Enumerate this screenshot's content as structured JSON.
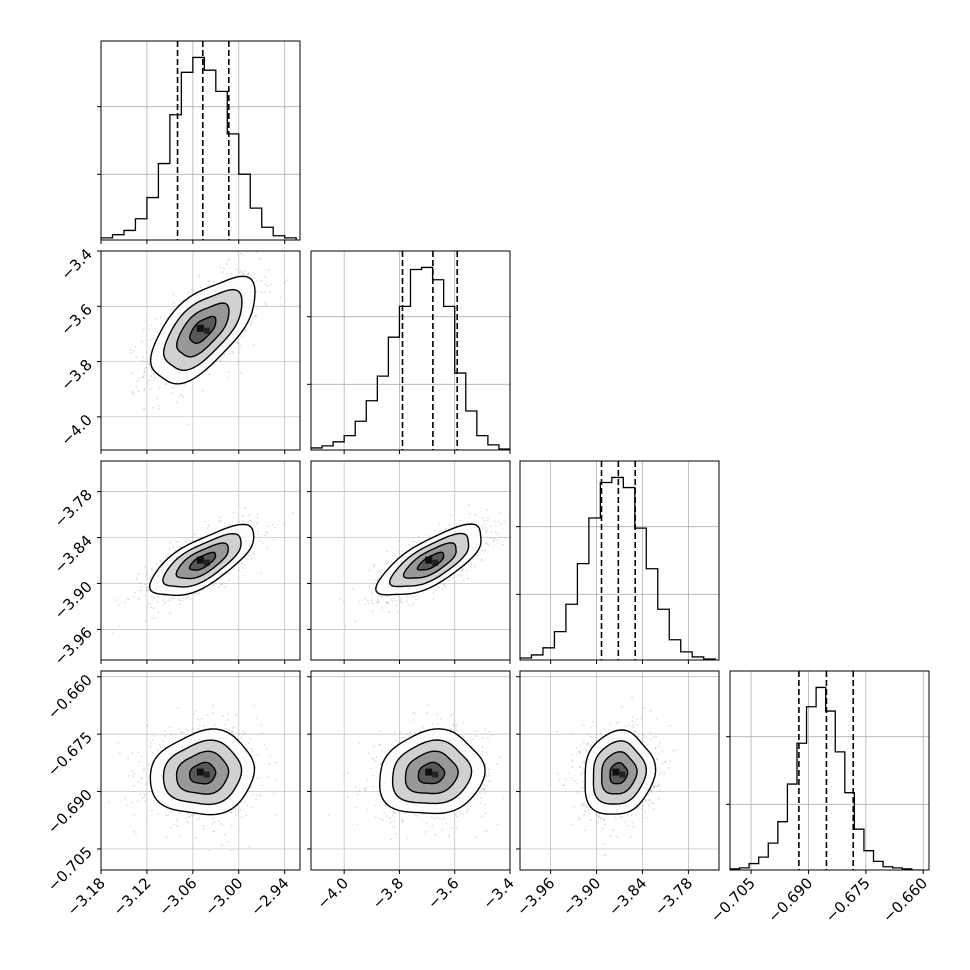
{
  "chart_data": {
    "type": "corner",
    "parameters": [
      {
        "range": [
          -3.18,
          -2.92
        ],
        "ticks": [
          "−3.18",
          "−3.12",
          "−3.06",
          "−3.00",
          "−2.94"
        ],
        "tick_values": [
          -3.18,
          -3.12,
          -3.06,
          -3.0,
          -2.94
        ]
      },
      {
        "range": [
          -4.12,
          -3.4
        ],
        "ticks": [
          "−4.0",
          "−3.8",
          "−3.6",
          "−3.4"
        ],
        "tick_values": [
          -4.0,
          -3.8,
          -3.6,
          -3.4
        ]
      },
      {
        "range": [
          -4.0,
          -3.74
        ],
        "ticks": [
          "−3.96",
          "−3.90",
          "−3.84",
          "−3.78"
        ],
        "tick_values": [
          -3.96,
          -3.9,
          -3.84,
          -3.78
        ]
      },
      {
        "range": [
          -0.7105,
          -0.6585
        ],
        "ticks": [
          "−0.705",
          "−0.690",
          "−0.675",
          "−0.660"
        ],
        "tick_values": [
          -0.705,
          -0.69,
          -0.675,
          -0.66
        ]
      }
    ],
    "y_tick_labels": {
      "row1": [
        "−3.4",
        "−3.6",
        "−3.8",
        "−4.0"
      ],
      "row2": [
        "−3.78",
        "−3.84",
        "−3.90",
        "−3.96"
      ],
      "row3": [
        "−0.660",
        "−0.675",
        "−0.690",
        "−0.705"
      ]
    },
    "histograms": [
      {
        "bins": [
          -3.18,
          -3.165,
          -3.15,
          -3.135,
          -3.12,
          -3.105,
          -3.09,
          -3.075,
          -3.06,
          -3.045,
          -3.03,
          -3.015,
          -3.0,
          -2.985,
          -2.97,
          -2.955,
          -2.94,
          -2.925
        ],
        "counts": [
          2,
          5,
          9,
          20,
          40,
          72,
          118,
          158,
          172,
          160,
          140,
          100,
          62,
          30,
          12,
          4,
          2
        ],
        "quantiles": [
          -3.08,
          -3.047,
          -3.013
        ]
      },
      {
        "bins": [
          -4.12,
          -4.08,
          -4.04,
          -4.0,
          -3.96,
          -3.92,
          -3.88,
          -3.84,
          -3.8,
          -3.76,
          -3.72,
          -3.68,
          -3.64,
          -3.6,
          -3.56,
          -3.52,
          -3.48,
          -3.44,
          -3.4
        ],
        "counts": [
          2,
          4,
          8,
          14,
          28,
          48,
          72,
          110,
          140,
          176,
          178,
          166,
          140,
          75,
          38,
          14,
          5,
          1
        ],
        "quantiles": [
          -3.789,
          -3.679,
          -3.591
        ]
      },
      {
        "bins": [
          -4.0,
          -3.985,
          -3.97,
          -3.955,
          -3.94,
          -3.925,
          -3.91,
          -3.895,
          -3.88,
          -3.865,
          -3.85,
          -3.835,
          -3.82,
          -3.805,
          -3.79,
          -3.775,
          -3.76,
          -3.745
        ],
        "counts": [
          2,
          5,
          12,
          28,
          55,
          95,
          140,
          175,
          180,
          170,
          130,
          90,
          50,
          20,
          8,
          3,
          1
        ],
        "quantiles": [
          -3.8935,
          -3.8715,
          -3.8495
        ]
      },
      {
        "bins": [
          -0.7105,
          -0.708,
          -0.7055,
          -0.703,
          -0.7005,
          -0.698,
          -0.6955,
          -0.693,
          -0.6905,
          -0.688,
          -0.6855,
          -0.683,
          -0.6805,
          -0.678,
          -0.6755,
          -0.673,
          -0.6705,
          -0.668,
          -0.6655,
          -0.663,
          -0.6605
        ],
        "counts": [
          1,
          2,
          6,
          12,
          25,
          45,
          80,
          118,
          152,
          170,
          148,
          110,
          72,
          38,
          18,
          8,
          3,
          2,
          1,
          0
        ],
        "quantiles": [
          -0.6925,
          -0.6853,
          -0.6783
        ]
      }
    ],
    "pairs": [
      {
        "row": 1,
        "col": 0,
        "mean": [
          -3.047,
          -3.685
        ],
        "sd": [
          0.034,
          0.095
        ],
        "rho": 0.62
      },
      {
        "row": 2,
        "col": 0,
        "mean": [
          -3.047,
          -3.8715
        ],
        "sd": [
          0.034,
          0.023
        ],
        "rho": 0.7
      },
      {
        "row": 2,
        "col": 1,
        "mean": [
          -3.685,
          -3.8715
        ],
        "sd": [
          0.095,
          0.023
        ],
        "rho": 0.72
      },
      {
        "row": 3,
        "col": 0,
        "mean": [
          -3.047,
          -0.6853
        ],
        "sd": [
          0.034,
          0.0055
        ],
        "rho": 0.1
      },
      {
        "row": 3,
        "col": 1,
        "mean": [
          -3.685,
          -0.6853
        ],
        "sd": [
          0.095,
          0.0055
        ],
        "rho": 0.1
      },
      {
        "row": 3,
        "col": 2,
        "mean": [
          -3.8715,
          -0.6853
        ],
        "sd": [
          0.023,
          0.0055
        ],
        "rho": 0.1
      }
    ],
    "contour_levels_sigma": [
      0.5,
      1.0,
      1.5,
      2.0
    ],
    "grid": true,
    "line_color": "#000000",
    "point_color": "#9e9e9e"
  }
}
